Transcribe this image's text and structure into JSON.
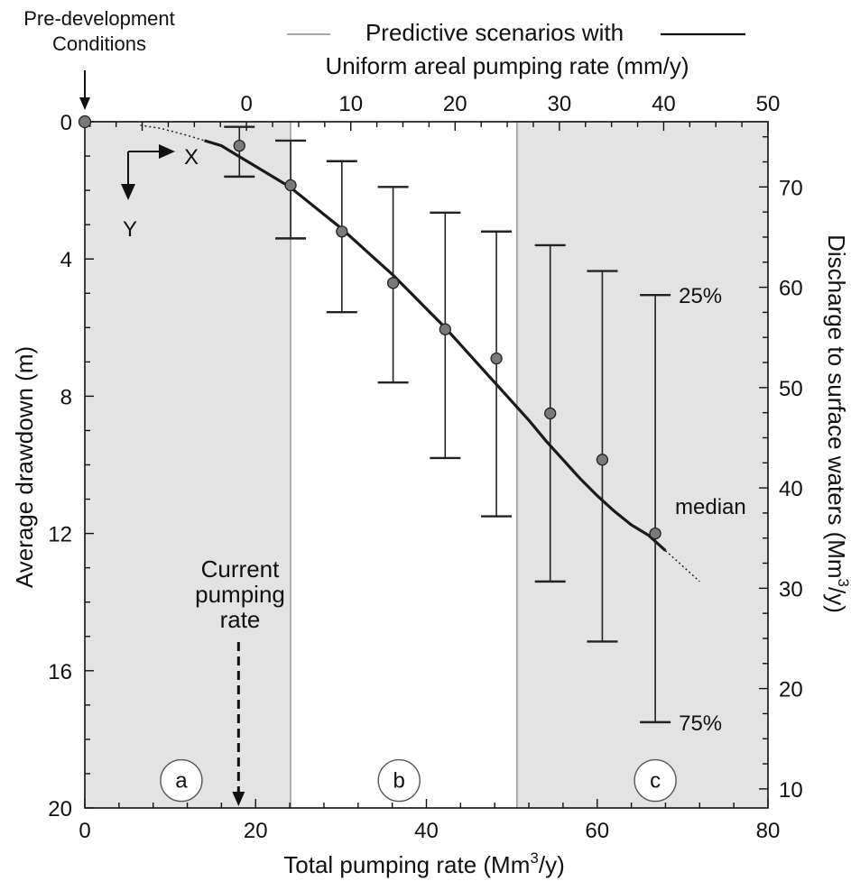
{
  "chart_data": {
    "type": "line",
    "title": "",
    "top_label_line1": "Predictive scenarios with",
    "top_label_line2": "Uniform areal pumping rate (mm/y)",
    "xlabel": "Total pumping rate (Mm",
    "xlabel_sup": "3",
    "xlabel_end": "/y)",
    "ylabel": "Average drawdown (m)",
    "y2label": "Discharge to surface waters (Mm",
    "y2label_sup": "3",
    "y2label_end": "/y)",
    "xlim": [
      0,
      80
    ],
    "ylim": [
      0,
      20
    ],
    "x2lim": [
      -15.5,
      50
    ],
    "y2_at_top": 76.5,
    "y2_per_y": 3.42,
    "x_ticks": [
      "0",
      "20",
      "40",
      "60",
      "80"
    ],
    "y_ticks": [
      "0",
      "4",
      "8",
      "12",
      "16",
      "20"
    ],
    "x2_ticks": [
      "0",
      "10",
      "20",
      "30",
      "40",
      "50"
    ],
    "y2_ticks": [
      "10",
      "20",
      "30",
      "40",
      "50",
      "60",
      "70"
    ],
    "predevelopment": {
      "x": 0,
      "y": 0,
      "label_line1": "Pre-development",
      "label_line2": "Conditions"
    },
    "points": [
      {
        "x": 18.1,
        "y": 0.7,
        "q25": 0.15,
        "q75": 1.6
      },
      {
        "x": 24.1,
        "y": 1.85,
        "q25": 0.55,
        "q75": 3.4
      },
      {
        "x": 30.1,
        "y": 3.2,
        "q25": 1.15,
        "q75": 5.55
      },
      {
        "x": 36.1,
        "y": 4.7,
        "q25": 1.9,
        "q75": 7.6
      },
      {
        "x": 42.2,
        "y": 6.05,
        "q25": 2.65,
        "q75": 9.8
      },
      {
        "x": 48.2,
        "y": 6.9,
        "q25": 3.2,
        "q75": 11.5
      },
      {
        "x": 54.5,
        "y": 8.5,
        "q25": 3.6,
        "q75": 13.4
      },
      {
        "x": 60.6,
        "y": 9.85,
        "q25": 4.35,
        "q75": 15.15
      },
      {
        "x": 66.8,
        "y": 12.0,
        "q25": 5.05,
        "q75": 17.5
      }
    ],
    "curve": [
      [
        14,
        0.55
      ],
      [
        16,
        0.7
      ],
      [
        18,
        1.0
      ],
      [
        20,
        1.3
      ],
      [
        22,
        1.6
      ],
      [
        24,
        1.9
      ],
      [
        26,
        2.3
      ],
      [
        28,
        2.7
      ],
      [
        30,
        3.1
      ],
      [
        32,
        3.55
      ],
      [
        34,
        4.0
      ],
      [
        36,
        4.45
      ],
      [
        38,
        4.95
      ],
      [
        40,
        5.45
      ],
      [
        42,
        5.95
      ],
      [
        44,
        6.5
      ],
      [
        46,
        7.05
      ],
      [
        48,
        7.6
      ],
      [
        50,
        8.15
      ],
      [
        52,
        8.7
      ],
      [
        54,
        9.3
      ],
      [
        56,
        9.85
      ],
      [
        58,
        10.4
      ],
      [
        60,
        10.9
      ],
      [
        62,
        11.35
      ],
      [
        64,
        11.75
      ],
      [
        66,
        12.05
      ],
      [
        68,
        12.5
      ]
    ],
    "curve_dotted_start": [
      [
        6.5,
        0.1
      ],
      [
        9,
        0.2
      ],
      [
        12,
        0.4
      ],
      [
        14,
        0.55
      ]
    ],
    "curve_dotted_end": [
      [
        68,
        12.5
      ],
      [
        70,
        12.95
      ],
      [
        72,
        13.4
      ]
    ],
    "region_boundaries": [
      24.1,
      50.6
    ],
    "regions": [
      {
        "label": "a",
        "x": 11.3,
        "y": 19.2,
        "shaded": true
      },
      {
        "label": "b",
        "x": 36.8,
        "y": 19.2,
        "shaded": false
      },
      {
        "label": "c",
        "x": 66.8,
        "y": 19.2,
        "shaded": true
      }
    ],
    "annotations": {
      "q25": "25%",
      "q75": "75%",
      "median": "median",
      "current_line1": "Current",
      "current_line2": "pumping",
      "current_line3": "rate",
      "current_x": 18.0,
      "axis_x": "X",
      "axis_y": "Y"
    },
    "colors": {
      "shade": "#e3e3e3",
      "curve": "#1a1a1a",
      "point": "#7a7a7a",
      "boundary": "#9a9a9a"
    }
  }
}
